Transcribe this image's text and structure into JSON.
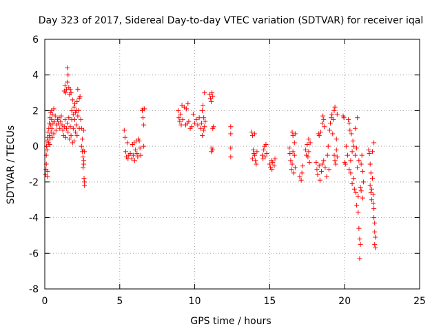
{
  "chart_data": {
    "type": "scatter",
    "title": "Day 323 of 2017, Sidereal Day-to-day VTEC variation (SDTVAR) for receiver iqal",
    "xlabel": "GPS time / hours",
    "ylabel": "SDTVAR / TECUs",
    "xlim": [
      0,
      25
    ],
    "ylim": [
      -8,
      6
    ],
    "xticks": [
      0,
      5,
      10,
      15,
      20,
      25
    ],
    "yticks": [
      -8,
      -6,
      -4,
      -2,
      0,
      2,
      4,
      6
    ],
    "xtick_labels": [
      "0",
      "5",
      "10",
      "15",
      "20",
      "25"
    ],
    "ytick_labels": [
      "-8",
      "-6",
      "-4",
      "-2",
      "0",
      "2",
      "4",
      "6"
    ],
    "grid": true,
    "marker": "+",
    "color": "#ff0000",
    "series": [
      {
        "name": "SDTVAR",
        "points": [
          [
            0.05,
            -1.6
          ],
          [
            0.08,
            -1.3
          ],
          [
            0.1,
            -1.0
          ],
          [
            0.1,
            -0.5
          ],
          [
            0.12,
            0.0
          ],
          [
            0.15,
            0.3
          ],
          [
            0.15,
            -0.2
          ],
          [
            0.18,
            -1.7
          ],
          [
            0.2,
            0.5
          ],
          [
            0.2,
            -1.4
          ],
          [
            0.22,
            0.8
          ],
          [
            0.25,
            0.2
          ],
          [
            0.27,
            1.0
          ],
          [
            0.3,
            0.6
          ],
          [
            0.3,
            1.3
          ],
          [
            0.32,
            0.1
          ],
          [
            0.35,
            1.6
          ],
          [
            0.35,
            0.4
          ],
          [
            0.38,
            1.9
          ],
          [
            0.4,
            1.2
          ],
          [
            0.42,
            0.8
          ],
          [
            0.45,
            1.5
          ],
          [
            0.45,
            2.0
          ],
          [
            0.48,
            1.0
          ],
          [
            0.5,
            0.5
          ],
          [
            0.5,
            1.8
          ],
          [
            0.55,
            1.3
          ],
          [
            0.6,
            2.1
          ],
          [
            0.6,
            0.7
          ],
          [
            0.65,
            1.4
          ],
          [
            0.7,
            1.7
          ],
          [
            0.75,
            0.9
          ],
          [
            0.8,
            1.2
          ],
          [
            0.85,
            1.5
          ],
          [
            0.9,
            1.3
          ],
          [
            0.95,
            1.6
          ],
          [
            1.0,
            1.0
          ],
          [
            1.05,
            1.4
          ],
          [
            1.1,
            1.7
          ],
          [
            1.15,
            1.2
          ],
          [
            1.2,
            0.9
          ],
          [
            1.25,
            0.6
          ],
          [
            1.3,
            1.1
          ],
          [
            1.3,
            3.1
          ],
          [
            1.35,
            3.4
          ],
          [
            1.35,
            1.5
          ],
          [
            1.4,
            3.0
          ],
          [
            1.4,
            0.5
          ],
          [
            1.45,
            3.2
          ],
          [
            1.45,
            1.0
          ],
          [
            1.5,
            4.4
          ],
          [
            1.5,
            3.6
          ],
          [
            1.5,
            1.3
          ],
          [
            1.55,
            4.0
          ],
          [
            1.55,
            0.8
          ],
          [
            1.6,
            3.3
          ],
          [
            1.6,
            1.6
          ],
          [
            1.65,
            2.9
          ],
          [
            1.65,
            0.4
          ],
          [
            1.7,
            3.2
          ],
          [
            1.7,
            1.1
          ],
          [
            1.75,
            0.6
          ],
          [
            1.75,
            3.0
          ],
          [
            1.8,
            1.5
          ],
          [
            1.8,
            2.0
          ],
          [
            1.85,
            0.2
          ],
          [
            1.85,
            2.6
          ],
          [
            1.9,
            1.0
          ],
          [
            1.9,
            1.8
          ],
          [
            1.95,
            2.2
          ],
          [
            1.95,
            0.3
          ],
          [
            2.0,
            1.5
          ],
          [
            2.0,
            2.4
          ],
          [
            2.05,
            0.8
          ],
          [
            2.05,
            1.9
          ],
          [
            2.1,
            1.2
          ],
          [
            2.1,
            2.0
          ],
          [
            2.15,
            2.5
          ],
          [
            2.15,
            0.6
          ],
          [
            2.2,
            1.7
          ],
          [
            2.2,
            3.2
          ],
          [
            2.25,
            2.0
          ],
          [
            2.3,
            2.7
          ],
          [
            2.3,
            1.0
          ],
          [
            2.35,
            2.8
          ],
          [
            2.4,
            1.5
          ],
          [
            2.45,
            0.0
          ],
          [
            2.45,
            1.0
          ],
          [
            2.5,
            -0.3
          ],
          [
            2.5,
            0.4
          ],
          [
            2.55,
            -0.6
          ],
          [
            2.55,
            -0.2
          ],
          [
            2.6,
            -1.0
          ],
          [
            2.6,
            -0.8
          ],
          [
            2.62,
            -1.8
          ],
          [
            2.65,
            -2.2
          ],
          [
            2.65,
            -2.0
          ],
          [
            2.6,
            0.9
          ],
          [
            2.65,
            -0.3
          ],
          [
            2.55,
            -1.2
          ],
          [
            5.3,
            0.9
          ],
          [
            5.35,
            0.5
          ],
          [
            5.4,
            -0.3
          ],
          [
            5.45,
            -0.6
          ],
          [
            5.5,
            0.2
          ],
          [
            5.55,
            -0.7
          ],
          [
            5.6,
            -0.5
          ],
          [
            5.7,
            -0.4
          ],
          [
            5.8,
            -0.7
          ],
          [
            5.85,
            0.1
          ],
          [
            5.9,
            -0.5
          ],
          [
            5.95,
            0.2
          ],
          [
            6.0,
            -0.8
          ],
          [
            6.05,
            -0.2
          ],
          [
            6.1,
            0.3
          ],
          [
            6.15,
            -0.4
          ],
          [
            6.2,
            -0.6
          ],
          [
            6.25,
            0.4
          ],
          [
            6.3,
            0.3
          ],
          [
            6.35,
            -0.1
          ],
          [
            6.4,
            -0.5
          ],
          [
            6.5,
            2.0
          ],
          [
            6.55,
            2.1
          ],
          [
            6.55,
            1.6
          ],
          [
            6.6,
            1.2
          ],
          [
            6.6,
            0.0
          ],
          [
            6.65,
            2.1
          ],
          [
            8.9,
            2.0
          ],
          [
            8.95,
            1.6
          ],
          [
            9.0,
            1.4
          ],
          [
            9.05,
            1.8
          ],
          [
            9.1,
            1.2
          ],
          [
            9.15,
            2.3
          ],
          [
            9.2,
            1.5
          ],
          [
            9.3,
            2.2
          ],
          [
            9.4,
            1.2
          ],
          [
            9.45,
            2.1
          ],
          [
            9.5,
            1.3
          ],
          [
            9.55,
            2.4
          ],
          [
            9.6,
            1.4
          ],
          [
            9.7,
            1.0
          ],
          [
            9.8,
            1.1
          ],
          [
            9.9,
            1.8
          ],
          [
            10.0,
            1.3
          ],
          [
            10.1,
            1.5
          ],
          [
            10.2,
            1.2
          ],
          [
            10.3,
            1.6
          ],
          [
            10.4,
            1.0
          ],
          [
            10.45,
            1.3
          ],
          [
            10.5,
            0.6
          ],
          [
            10.5,
            2.0
          ],
          [
            10.55,
            2.3
          ],
          [
            10.6,
            1.6
          ],
          [
            10.6,
            0.9
          ],
          [
            10.65,
            1.1
          ],
          [
            10.65,
            3.0
          ],
          [
            10.7,
            1.4
          ],
          [
            11.0,
            2.9
          ],
          [
            11.05,
            2.7
          ],
          [
            11.1,
            2.5
          ],
          [
            11.15,
            3.0
          ],
          [
            11.2,
            2.8
          ],
          [
            11.2,
            1.0
          ],
          [
            11.25,
            1.1
          ],
          [
            11.1,
            -0.3
          ],
          [
            11.15,
            -0.1
          ],
          [
            11.2,
            -0.2
          ],
          [
            12.4,
            1.1
          ],
          [
            12.4,
            0.7
          ],
          [
            12.4,
            -0.1
          ],
          [
            12.4,
            -0.6
          ],
          [
            13.8,
            0.8
          ],
          [
            13.85,
            0.6
          ],
          [
            13.9,
            -0.2
          ],
          [
            13.95,
            -0.4
          ],
          [
            14.0,
            0.7
          ],
          [
            14.0,
            -0.5
          ],
          [
            14.05,
            -0.8
          ],
          [
            14.1,
            -1.0
          ],
          [
            14.15,
            -0.3
          ],
          [
            13.85,
            -0.7
          ],
          [
            14.5,
            -0.5
          ],
          [
            14.55,
            -0.7
          ],
          [
            14.6,
            -0.2
          ],
          [
            14.65,
            0.0
          ],
          [
            14.7,
            -0.6
          ],
          [
            14.75,
            0.1
          ],
          [
            14.8,
            -0.4
          ],
          [
            15.0,
            -1.0
          ],
          [
            15.05,
            -1.2
          ],
          [
            15.1,
            -0.8
          ],
          [
            15.15,
            -1.3
          ],
          [
            15.2,
            -0.9
          ],
          [
            15.3,
            -1.1
          ],
          [
            15.35,
            -0.7
          ],
          [
            16.3,
            -0.1
          ],
          [
            16.35,
            -0.4
          ],
          [
            16.4,
            -0.8
          ],
          [
            16.45,
            -1.3
          ],
          [
            16.5,
            -1.0
          ],
          [
            16.5,
            0.8
          ],
          [
            16.55,
            0.6
          ],
          [
            16.55,
            -0.3
          ],
          [
            16.6,
            -1.5
          ],
          [
            16.65,
            -0.5
          ],
          [
            16.65,
            0.2
          ],
          [
            16.7,
            -1.2
          ],
          [
            16.7,
            0.7
          ],
          [
            17.0,
            -1.7
          ],
          [
            17.1,
            -1.9
          ],
          [
            17.15,
            -1.5
          ],
          [
            17.2,
            -1.1
          ],
          [
            17.4,
            -0.2
          ],
          [
            17.45,
            -0.5
          ],
          [
            17.5,
            0.1
          ],
          [
            17.55,
            -0.6
          ],
          [
            17.6,
            -0.3
          ],
          [
            17.6,
            0.4
          ],
          [
            17.65,
            -0.9
          ],
          [
            17.7,
            0.2
          ],
          [
            18.1,
            -0.9
          ],
          [
            18.15,
            -1.3
          ],
          [
            18.2,
            -1.6
          ],
          [
            18.25,
            0.7
          ],
          [
            18.3,
            -1.1
          ],
          [
            18.3,
            0.6
          ],
          [
            18.35,
            -1.9
          ],
          [
            18.4,
            0.8
          ],
          [
            18.45,
            -1.4
          ],
          [
            18.5,
            -1.0
          ],
          [
            18.5,
            1.3
          ],
          [
            18.55,
            1.7
          ],
          [
            18.6,
            1.5
          ],
          [
            18.6,
            -0.8
          ],
          [
            18.65,
            1.1
          ],
          [
            18.7,
            -1.2
          ],
          [
            18.8,
            -1.7
          ],
          [
            18.85,
            -0.5
          ],
          [
            18.9,
            0.0
          ],
          [
            18.95,
            -1.3
          ],
          [
            19.0,
            0.9
          ],
          [
            19.05,
            1.3
          ],
          [
            19.1,
            1.6
          ],
          [
            19.15,
            1.8
          ],
          [
            19.2,
            0.7
          ],
          [
            19.25,
            1.5
          ],
          [
            19.3,
            2.0
          ],
          [
            19.35,
            2.2
          ],
          [
            19.3,
            -0.5
          ],
          [
            19.35,
            -0.8
          ],
          [
            19.4,
            -1.0
          ],
          [
            19.45,
            0.4
          ],
          [
            19.45,
            -0.2
          ],
          [
            19.5,
            1.8
          ],
          [
            19.5,
            -0.6
          ],
          [
            19.9,
            1.7
          ],
          [
            19.95,
            1.6
          ],
          [
            20.0,
            -0.9
          ],
          [
            20.05,
            -1.0
          ],
          [
            20.1,
            0.0
          ],
          [
            20.2,
            -0.5
          ],
          [
            20.25,
            1.5
          ],
          [
            20.3,
            1.3
          ],
          [
            20.3,
            -1.3
          ],
          [
            20.35,
            0.9
          ],
          [
            20.4,
            -0.8
          ],
          [
            20.4,
            -1.5
          ],
          [
            20.45,
            0.7
          ],
          [
            20.5,
            -0.3
          ],
          [
            20.5,
            -2.1
          ],
          [
            20.55,
            0.3
          ],
          [
            20.6,
            -1.8
          ],
          [
            20.6,
            0.0
          ],
          [
            20.65,
            -2.4
          ],
          [
            20.7,
            1.0
          ],
          [
            20.7,
            -0.5
          ],
          [
            20.75,
            -2.6
          ],
          [
            20.8,
            -3.3
          ],
          [
            20.8,
            -0.1
          ],
          [
            20.85,
            -1.2
          ],
          [
            20.85,
            1.6
          ],
          [
            20.9,
            -2.8
          ],
          [
            20.9,
            -3.7
          ],
          [
            20.95,
            -4.6
          ],
          [
            20.95,
            -0.8
          ],
          [
            21.0,
            -5.2
          ],
          [
            21.0,
            -6.3
          ],
          [
            21.05,
            -5.5
          ],
          [
            21.05,
            -2.3
          ],
          [
            21.1,
            -2.5
          ],
          [
            21.1,
            -1.0
          ],
          [
            21.15,
            -0.5
          ],
          [
            21.2,
            -2.9
          ],
          [
            21.2,
            -1.4
          ],
          [
            21.25,
            -2.0
          ],
          [
            21.6,
            -0.2
          ],
          [
            21.65,
            -0.4
          ],
          [
            21.7,
            -1.0
          ],
          [
            21.7,
            -2.2
          ],
          [
            21.75,
            -2.6
          ],
          [
            21.75,
            -1.5
          ],
          [
            21.8,
            -3.0
          ],
          [
            21.8,
            -2.4
          ],
          [
            21.85,
            -0.3
          ],
          [
            21.85,
            -1.8
          ],
          [
            21.9,
            -2.7
          ],
          [
            21.9,
            -3.2
          ],
          [
            21.95,
            -3.5
          ],
          [
            21.95,
            0.2
          ],
          [
            22.0,
            -4.3
          ],
          [
            22.0,
            -4.8
          ],
          [
            22.05,
            -5.1
          ],
          [
            22.05,
            -5.7
          ],
          [
            22.0,
            -5.5
          ],
          [
            21.95,
            -4.0
          ]
        ]
      }
    ]
  }
}
